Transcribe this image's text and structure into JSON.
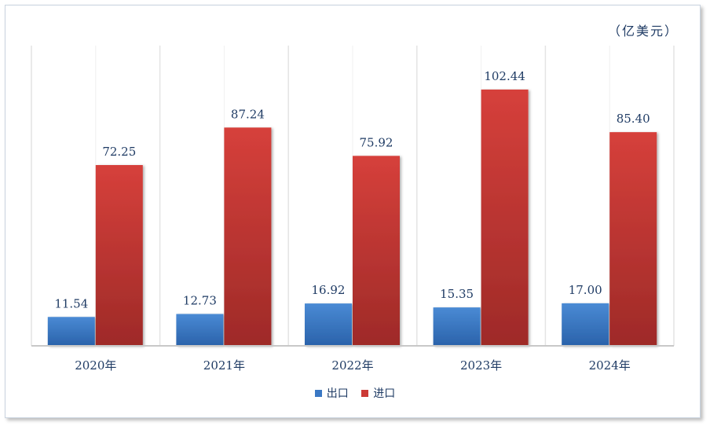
{
  "unit_label": "（亿美元）",
  "chart_data": {
    "type": "bar",
    "categories": [
      "2020年",
      "2021年",
      "2022年",
      "2023年",
      "2024年"
    ],
    "series": [
      {
        "name": "出口",
        "values": [
          11.54,
          12.73,
          16.92,
          15.35,
          17.0
        ],
        "labels": [
          "11.54",
          "12.73",
          "16.92",
          "15.35",
          "17.00"
        ],
        "color": "#3a78c4"
      },
      {
        "name": "进口",
        "values": [
          72.25,
          87.24,
          75.92,
          102.44,
          85.4
        ],
        "labels": [
          "72.25",
          "87.24",
          "75.92",
          "102.44",
          "85.40"
        ],
        "color": "#cc3a36"
      }
    ],
    "ylim": [
      0,
      120
    ],
    "grid": false,
    "legend_position": "bottom"
  }
}
